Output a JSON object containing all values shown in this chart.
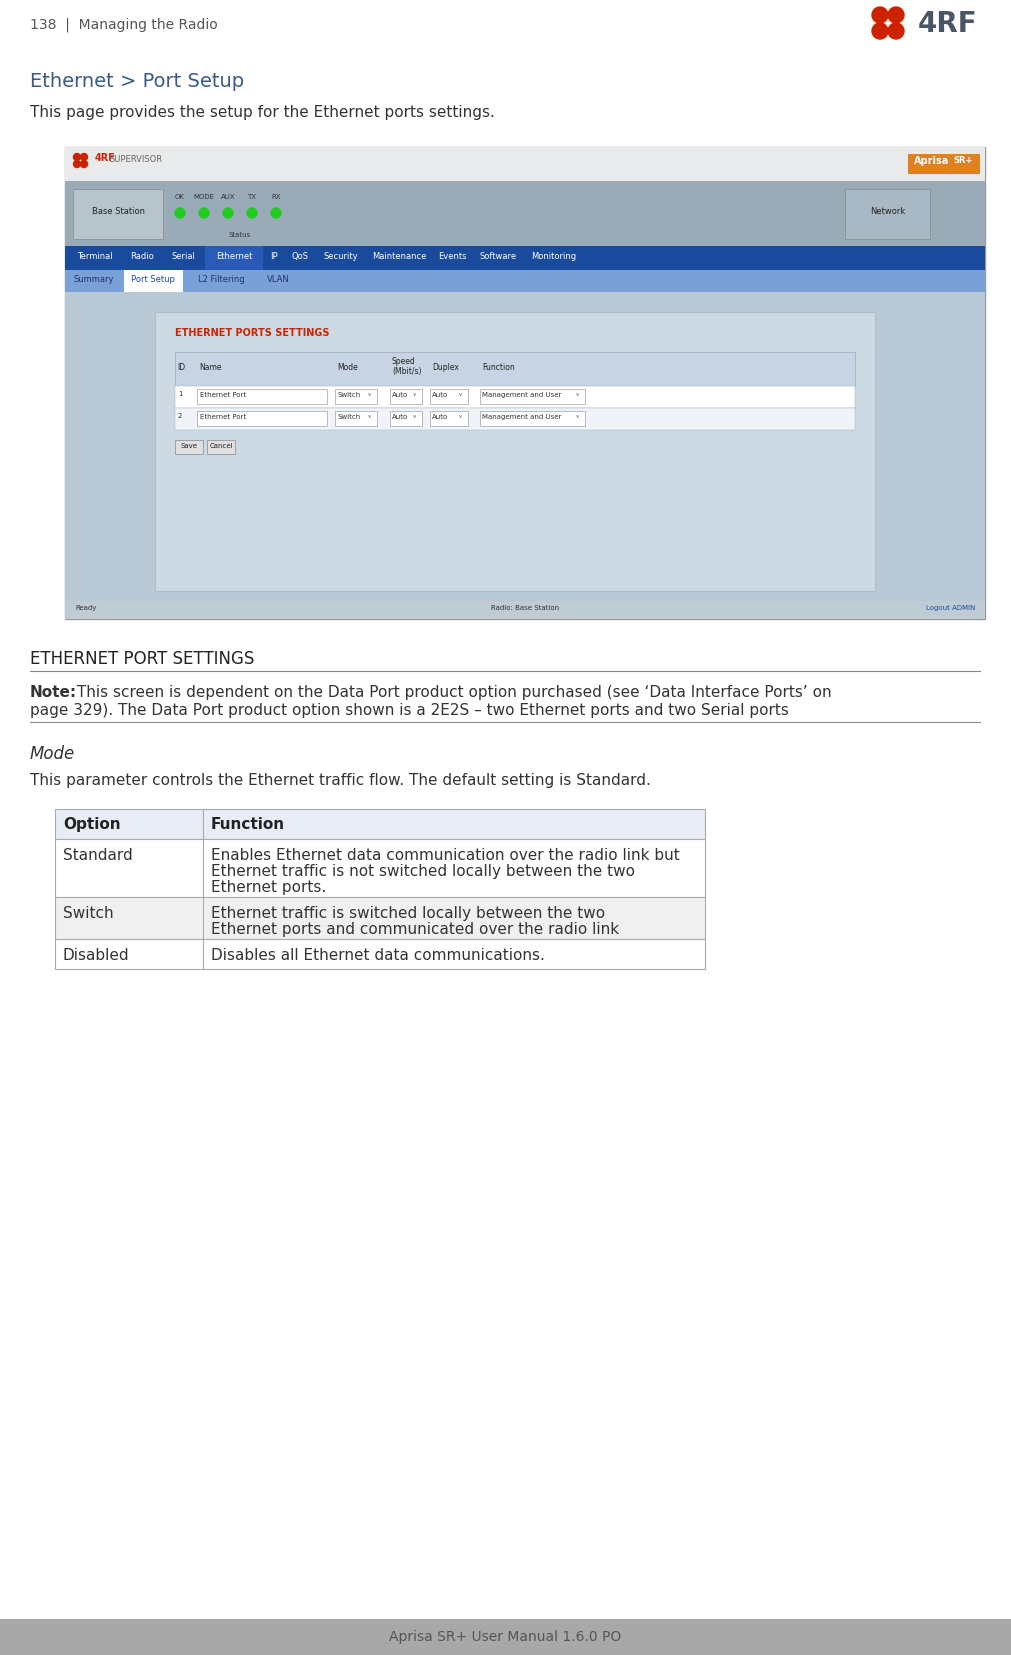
{
  "page_header_left": "138  |  Managing the Radio",
  "page_footer": "Aprisa SR+ User Manual 1.6.0 PO",
  "section_title": "Ethernet > Port Setup",
  "section_desc": "This page provides the setup for the Ethernet ports settings.",
  "screen_title_red": "ETHERNET PORTS SETTINGS",
  "nav_tabs_main": [
    "Terminal",
    "Radio",
    "Serial",
    "Ethernet",
    "IP",
    "QoS",
    "Security",
    "Maintenance",
    "Events",
    "Software",
    "Monitoring"
  ],
  "nav_tabs_sub": [
    "Summary",
    "Port Setup",
    "L2 Filtering",
    "VLAN"
  ],
  "active_main_tab": "Ethernet",
  "active_sub_tab": "Port Setup",
  "table_headers": [
    "ID",
    "Name",
    "Mode",
    "Speed\n(Mbit/s)",
    "Duplex",
    "Function"
  ],
  "table_rows": [
    [
      "1",
      "Ethernet Port",
      "Switch",
      "Auto",
      "Auto",
      "Management and User"
    ],
    [
      "2",
      "Ethernet Port",
      "Switch",
      "Auto",
      "Auto",
      "Management and User"
    ]
  ],
  "buttons": [
    "Save",
    "Cancel"
  ],
  "section2_title": "ETHERNET PORT SETTINGS",
  "note_bold": "Note:",
  "note_line1": " This screen is dependent on the Data Port product option purchased (see ‘Data Interface Ports’ on",
  "note_line2": "page 329). The Data Port product option shown is a 2E2S – two Ethernet ports and two Serial ports",
  "mode_title": "Mode",
  "mode_desc": "This parameter controls the Ethernet traffic flow. The default setting is Standard.",
  "option_col": "Option",
  "function_col": "Function",
  "table2_rows": [
    [
      "Standard",
      "Enables Ethernet data communication over the radio link but\nEthernet traffic is not switched locally between the two\nEthernet ports."
    ],
    [
      "Switch",
      "Ethernet traffic is switched locally between the two\nEthernet ports and communicated over the radio link"
    ],
    [
      "Disabled",
      "Disables all Ethernet data communications."
    ]
  ],
  "bg_color": "#ffffff",
  "footer_bg": "#a8a8a8",
  "screen_outer_bg": "#8a9ba8",
  "screen_top_bg": "#e8eaec",
  "screen_status_bg": "#9aabb8",
  "screen_inner_bg": "#b8c8d4",
  "content_box_bg": "#cddae4",
  "nav_main_bg": "#1a4a9c",
  "nav_sub_bg": "#7aa0d8",
  "active_tab_bg": "#2a5ab8",
  "table_header_bg": "#c8d4e4",
  "logo_red": "#cc2200",
  "logo_gray": "#4a5568",
  "aprisa_orange": "#e08020",
  "text_dark": "#333333",
  "text_white": "#ffffff",
  "text_blue_link": "#1a4aaa",
  "text_red": "#cc2200",
  "table2_border": "#aaaaaa",
  "table2_header_bg": "#e8edf5",
  "table2_row0_bg": "#ffffff",
  "table2_row1_bg": "#f0f0f0",
  "table2_row2_bg": "#ffffff",
  "screen_bottom_bar_bg": "#c0ccd4"
}
